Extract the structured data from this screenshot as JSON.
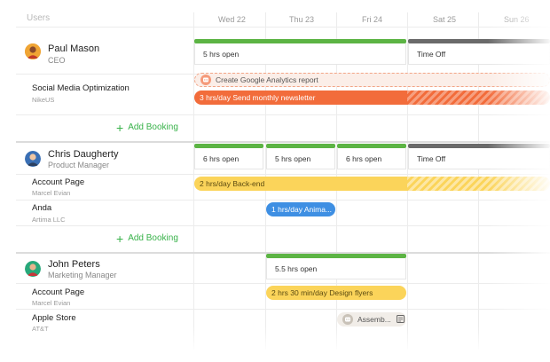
{
  "sidebar_title": "Users",
  "days": [
    "Wed 22",
    "Thu 23",
    "Fri 24",
    "Sat 25",
    "Sun 26"
  ],
  "colors": {
    "green": "#5cb444",
    "gray": "#6a6a6a",
    "orange": "#f26c3b",
    "yellow": "#fbd45a",
    "blue": "#3e8fe3",
    "add": "#38b24a"
  },
  "add_booking_label": "Add Booking",
  "people": [
    {
      "name": "Paul Mason",
      "role": "CEO",
      "avatar_icon": "person-avatar-icon",
      "capacity": [
        {
          "label": "5 hrs open"
        },
        {
          "label": "Time Off"
        }
      ],
      "projects": [
        {
          "name": "Social Media Optimization",
          "client": "NikeUS",
          "bookings": [
            {
              "label": "Create Google Analytics report",
              "style": "tentative"
            },
            {
              "label": "3 hrs/day Send monthly newsletter",
              "style": "orange"
            }
          ]
        }
      ]
    },
    {
      "name": "Chris Daugherty",
      "role": "Product Manager",
      "avatar_icon": "person-avatar-icon",
      "capacity": [
        {
          "label": "6 hrs open"
        },
        {
          "label": "5 hrs open"
        },
        {
          "label": "6 hrs open"
        },
        {
          "label": "Time Off"
        }
      ],
      "projects": [
        {
          "name": "Account Page",
          "client": "Marcel Evian",
          "bookings": [
            {
              "label": "2 hrs/day Back-end",
              "style": "yellow"
            }
          ]
        },
        {
          "name": "Anda",
          "client": "Artima LLC",
          "bookings": [
            {
              "label": "1 hrs/day Anima...",
              "style": "blue"
            }
          ]
        }
      ]
    },
    {
      "name": "John Peters",
      "role": "Marketing Manager",
      "avatar_icon": "person-avatar-icon",
      "capacity": [
        {
          "label": "5.5 hrs open"
        }
      ],
      "projects": [
        {
          "name": "Account Page",
          "client": "Marcel Evian",
          "bookings": [
            {
              "label": "2 hrs 30 min/day Design flyers",
              "style": "yellow"
            }
          ]
        },
        {
          "name": "Apple Store",
          "client": "AT&T",
          "bookings": [
            {
              "label": "Assemb...",
              "style": "gray"
            }
          ]
        }
      ]
    }
  ]
}
